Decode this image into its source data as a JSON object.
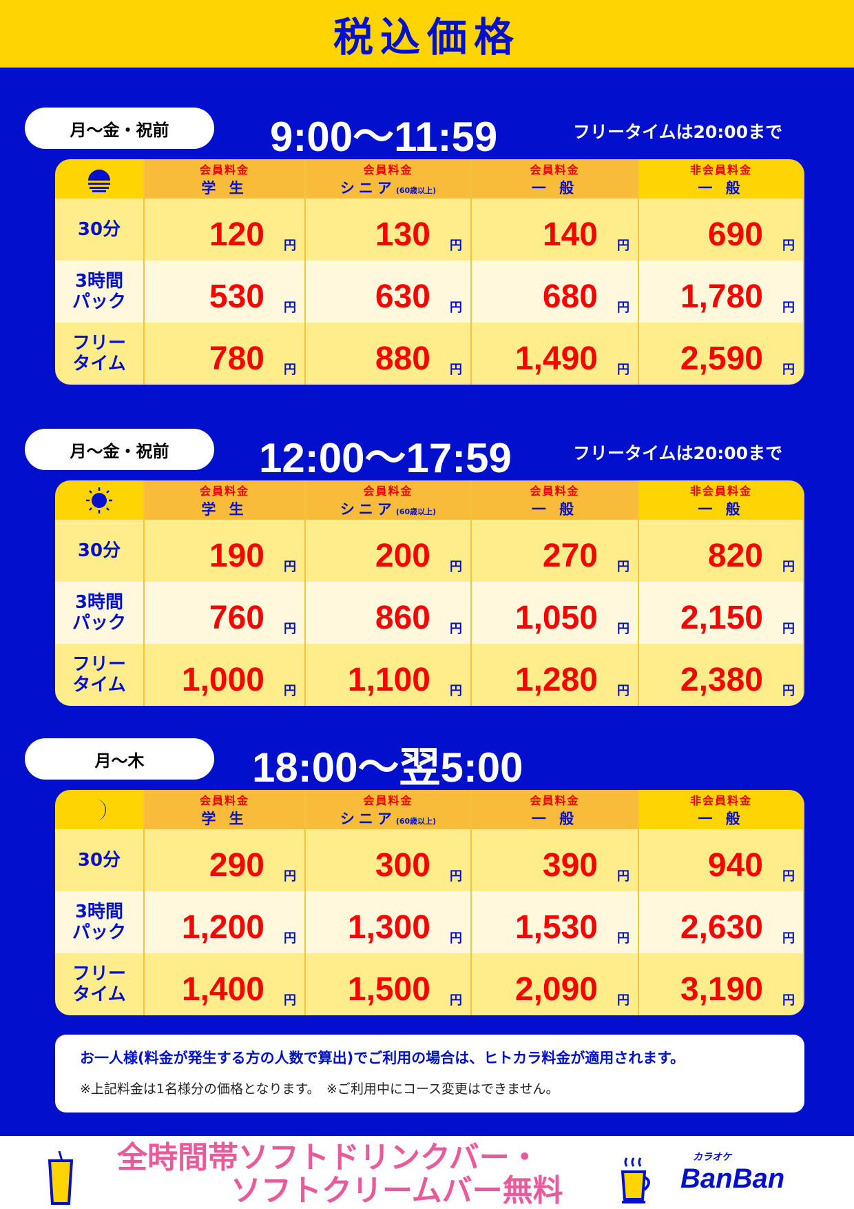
{
  "title": "税込価格",
  "columns": [
    {
      "top": "会員料金",
      "bottom": "学 生",
      "sub": ""
    },
    {
      "top": "会員料金",
      "bottom": "シニア",
      "sub": "(60歳以上)"
    },
    {
      "top": "会員料金",
      "bottom": "一 般",
      "sub": ""
    },
    {
      "top": "非会員料金",
      "bottom": "一 般",
      "sub": ""
    }
  ],
  "row_labels": [
    "30分",
    "3時間\nパック",
    "フリー\nタイム"
  ],
  "yen": "円",
  "sections": [
    {
      "days": "月〜金・祝前",
      "time": "9:00〜11:59",
      "note": "フリータイムは20:00まで",
      "icon": "sunrise-icon",
      "prices": [
        [
          "120",
          "130",
          "140",
          "690"
        ],
        [
          "530",
          "630",
          "680",
          "1,780"
        ],
        [
          "780",
          "880",
          "1,490",
          "2,590"
        ]
      ]
    },
    {
      "days": "月〜金・祝前",
      "time": "12:00〜17:59",
      "note": "フリータイムは20:00まで",
      "icon": "sun-icon",
      "prices": [
        [
          "190",
          "200",
          "270",
          "820"
        ],
        [
          "760",
          "860",
          "1,050",
          "2,150"
        ],
        [
          "1,000",
          "1,100",
          "1,280",
          "2,380"
        ]
      ]
    },
    {
      "days": "月〜木",
      "time": "18:00〜翌5:00",
      "note": "",
      "icon": "moon-icon",
      "prices": [
        [
          "290",
          "300",
          "390",
          "940"
        ],
        [
          "1,200",
          "1,300",
          "1,530",
          "2,630"
        ],
        [
          "1,400",
          "1,500",
          "2,090",
          "3,190"
        ]
      ]
    }
  ],
  "notice": {
    "main": "お一人様(料金が発生する方の人数で算出)でご利用の場合は、ヒトカラ料金が適用されます。",
    "sub": "※上記料金は1名様分の価格となります。　※ご利用中にコース変更はできません。"
  },
  "footer": {
    "promo_line1": "全時間帯ソフトドリンクバー・",
    "promo_line2": "ソフトクリームバー無料",
    "logo_small": "カラオケ",
    "logo_main": "BanBan"
  },
  "colors": {
    "blue": "#0010cc",
    "yellow": "#ffd400",
    "orange": "#f9bc3a",
    "price_red": "#ff0000",
    "promo_pink": "#ea5a9a"
  }
}
